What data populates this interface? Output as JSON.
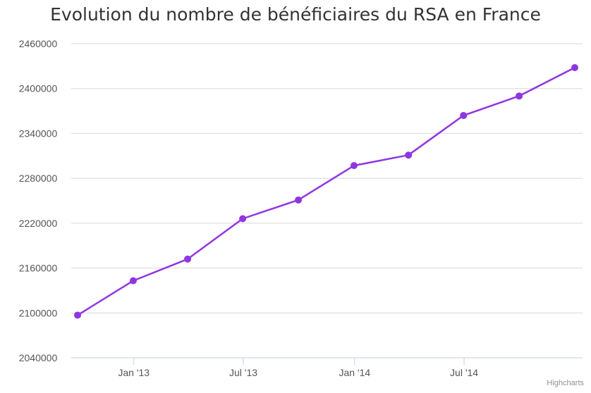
{
  "chart_data": {
    "type": "line",
    "title": "Evolution du nombre de bénéficiaires du RSA en France",
    "xlabel": "",
    "ylabel": "",
    "x": [
      "2012-09-30",
      "2012-12-31",
      "2013-03-31",
      "2013-06-30",
      "2013-09-30",
      "2013-12-31",
      "2014-03-31",
      "2014-06-30",
      "2014-09-30",
      "2014-12-31"
    ],
    "series": [
      {
        "values": [
          2097000,
          2143000,
          2172000,
          2226000,
          2251000,
          2297000,
          2311000,
          2364000,
          2390000,
          2428000
        ]
      }
    ],
    "ylim": [
      2040000,
      2460000
    ],
    "yticks": [
      "2460000",
      "2400000",
      "2340000",
      "2280000",
      "2220000",
      "2160000",
      "2100000",
      "2040000"
    ],
    "ytick_values": [
      2460000,
      2400000,
      2340000,
      2280000,
      2220000,
      2160000,
      2100000,
      2040000
    ],
    "xticks": [
      "Jan '13",
      "Jul '13",
      "Jan '14",
      "Jul '14"
    ],
    "xtick_dates": [
      "2013-01-01",
      "2013-07-01",
      "2014-01-01",
      "2014-07-01"
    ],
    "grid": true,
    "legend": "none",
    "color": "#9036e0"
  },
  "credits": "Highcharts"
}
